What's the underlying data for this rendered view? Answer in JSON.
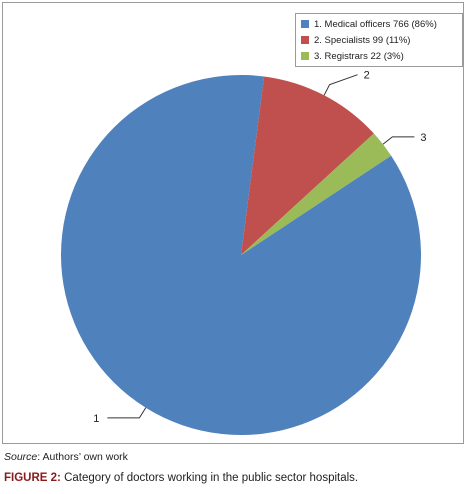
{
  "chart_data": {
    "type": "pie",
    "slices": [
      {
        "label": "1. Medical officers 766 (86%)",
        "callout": "1",
        "value": 766,
        "percent": 86,
        "color": "#4F81BD"
      },
      {
        "label": "2. Specialists 99 (11%)",
        "callout": "2",
        "value": 99,
        "percent": 11,
        "color": "#C0504D"
      },
      {
        "label": "3. Registrars 22 (3%)",
        "callout": "3",
        "value": 22,
        "percent": 3,
        "color": "#9BBB59"
      }
    ],
    "legend_position": "top-right"
  },
  "source": {
    "label": "Source",
    "text": ": Authors’ own work"
  },
  "caption": {
    "label": "FIGURE 2:",
    "text": " Category of doctors working in the public sector hospitals."
  }
}
